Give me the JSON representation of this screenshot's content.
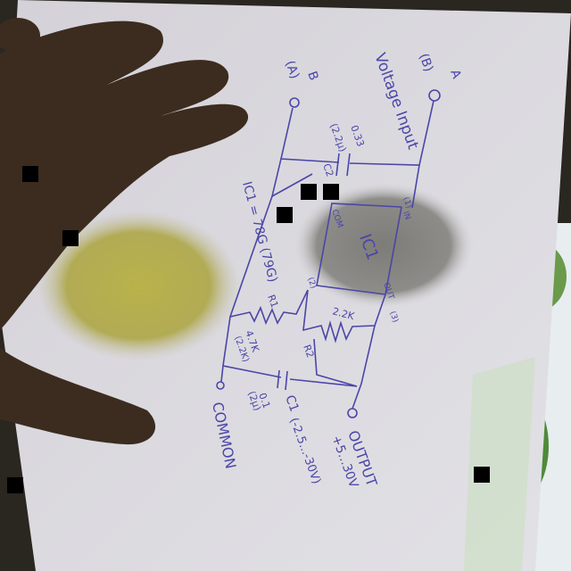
{
  "diagram": {
    "terminals": {
      "a": "A",
      "a_alt": "(B)",
      "b": "B",
      "b_alt": "(A)",
      "common": "COMMON",
      "output": "OUTPUT"
    },
    "input_label": "Voltage Input",
    "c2": {
      "name": "C2",
      "value": "0.33",
      "alt": "(2.2µ)"
    },
    "ic": {
      "name": "IC1",
      "spec": "IC1 = 78G (79G)",
      "pin_in": "IN",
      "pin_com": "COM",
      "pin_out": "OUT",
      "pin1": "(1)",
      "pin2": "(2)",
      "pin3": "(3)"
    },
    "r1": {
      "name": "R1",
      "value": "4.7K",
      "alt": "(2.2K)"
    },
    "r2": {
      "name": "R2",
      "value": "2.2K"
    },
    "c1": {
      "name": "C1",
      "value": "0.1",
      "alt": "(2µ)",
      "range": "(-2.5...-30V)"
    },
    "output_range": "+5...30V"
  }
}
